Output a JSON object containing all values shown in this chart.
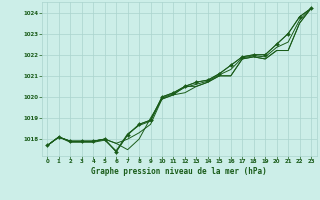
{
  "title": "Graphe pression niveau de la mer (hPa)",
  "bg_color": "#cceee8",
  "grid_color": "#aad4ce",
  "line_color": "#1a5c1a",
  "marker_color": "#1a5c1a",
  "label_color": "#1a5c1a",
  "ylim": [
    1017.2,
    1024.5
  ],
  "yticks": [
    1018,
    1019,
    1020,
    1021,
    1022,
    1023,
    1024
  ],
  "xlim": [
    -0.5,
    23.5
  ],
  "xticks": [
    0,
    1,
    2,
    3,
    4,
    5,
    6,
    7,
    8,
    9,
    10,
    11,
    12,
    13,
    14,
    15,
    16,
    17,
    18,
    19,
    20,
    21,
    22,
    23
  ],
  "line1": [
    1017.7,
    1018.1,
    1017.9,
    1017.9,
    1017.9,
    1018.0,
    1017.8,
    1017.5,
    1018.0,
    1019.0,
    1019.9,
    1020.1,
    1020.5,
    1020.5,
    1020.7,
    1021.0,
    1021.0,
    1021.8,
    1021.9,
    1021.8,
    1022.2,
    1022.2,
    1023.5,
    1024.2
  ],
  "line2": [
    1017.7,
    1018.1,
    1017.9,
    1017.9,
    1017.9,
    1018.0,
    1017.8,
    1018.0,
    1018.3,
    1018.7,
    1019.9,
    1020.1,
    1020.2,
    1020.5,
    1020.7,
    1021.0,
    1021.0,
    1021.8,
    1021.9,
    1021.8,
    1022.2,
    1022.2,
    1023.5,
    1024.2
  ],
  "line3": [
    1017.7,
    1018.1,
    1017.9,
    1017.9,
    1017.9,
    1018.0,
    1017.4,
    1018.2,
    1018.7,
    1018.9,
    1020.0,
    1020.2,
    1020.5,
    1020.7,
    1020.8,
    1021.1,
    1021.5,
    1021.9,
    1022.0,
    1022.0,
    1022.5,
    1023.0,
    1023.8,
    1024.2
  ],
  "line4": [
    1017.7,
    1018.1,
    1017.85,
    1017.85,
    1017.85,
    1017.95,
    1017.45,
    1018.25,
    1018.65,
    1018.85,
    1019.95,
    1020.15,
    1020.45,
    1020.6,
    1020.75,
    1021.05,
    1021.3,
    1021.85,
    1021.95,
    1021.9,
    1022.35,
    1022.6,
    1023.65,
    1024.2
  ]
}
